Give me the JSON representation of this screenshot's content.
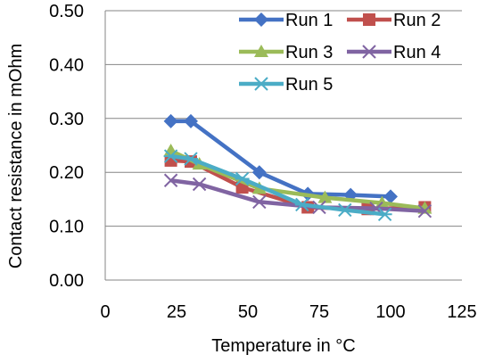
{
  "chart_data": {
    "type": "line",
    "title": "",
    "xlabel": "Temperature in °C",
    "ylabel": "Contact resistance in mOhm",
    "xlim": [
      0,
      125
    ],
    "ylim": [
      0,
      0.5
    ],
    "x_ticks": [
      0,
      25,
      50,
      75,
      100,
      125
    ],
    "x_tick_labels": [
      "0",
      "25",
      "50",
      "75",
      "100",
      "125"
    ],
    "y_ticks": [
      0,
      0.1,
      0.2,
      0.3,
      0.4,
      0.5
    ],
    "y_tick_labels": [
      "0.00",
      "0.10",
      "0.20",
      "0.30",
      "0.40",
      "0.50"
    ],
    "grid": "horizontal",
    "legend": "top-right",
    "series": [
      {
        "name": "Run 1",
        "color": "#4472C4",
        "marker": "diamond",
        "points": [
          [
            23,
            0.295
          ],
          [
            30,
            0.295
          ],
          [
            54,
            0.2
          ],
          [
            71,
            0.16
          ],
          [
            86,
            0.158
          ],
          [
            100,
            0.155
          ]
        ]
      },
      {
        "name": "Run 2",
        "color": "#C0504D",
        "marker": "square",
        "points": [
          [
            23,
            0.222
          ],
          [
            30,
            0.22
          ],
          [
            48,
            0.172
          ],
          [
            71,
            0.135
          ],
          [
            92,
            0.132
          ],
          [
            112,
            0.135
          ]
        ]
      },
      {
        "name": "Run 3",
        "color": "#9BBB59",
        "marker": "triangle",
        "points": [
          [
            23,
            0.24
          ],
          [
            33,
            0.215
          ],
          [
            54,
            0.17
          ],
          [
            77,
            0.153
          ],
          [
            97,
            0.143
          ],
          [
            112,
            0.133
          ]
        ]
      },
      {
        "name": "Run 4",
        "color": "#8064A2",
        "marker": "x",
        "points": [
          [
            23,
            0.185
          ],
          [
            33,
            0.178
          ],
          [
            54,
            0.145
          ],
          [
            75,
            0.135
          ],
          [
            95,
            0.133
          ],
          [
            112,
            0.128
          ]
        ]
      },
      {
        "name": "Run 5",
        "color": "#4BACC6",
        "marker": "asterisk",
        "points": [
          [
            23,
            0.23
          ],
          [
            30,
            0.225
          ],
          [
            48,
            0.188
          ],
          [
            69,
            0.14
          ],
          [
            84,
            0.13
          ],
          [
            98,
            0.122
          ]
        ]
      }
    ]
  }
}
